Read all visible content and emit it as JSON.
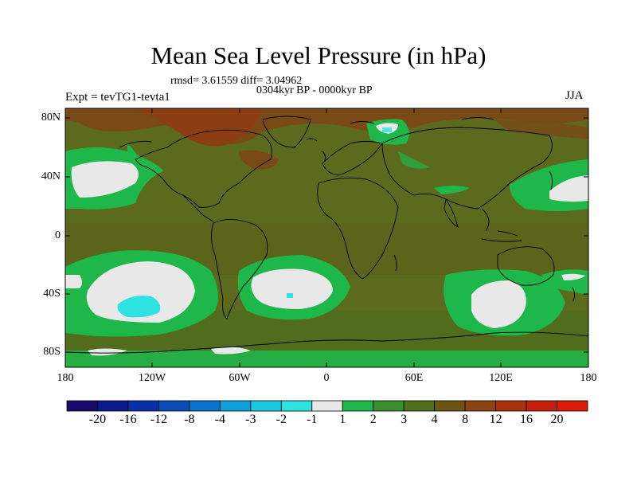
{
  "title": "Mean Sea Level Pressure (in hPa)",
  "stats": "rmsd= 3.61559  diff= 3.04962",
  "period": "0304kyr BP - 0000kyr BP",
  "experiment": "Expt = tevTG1-tevta1",
  "season": "JJA",
  "lat_labels": [
    "80N",
    "40N",
    "0",
    "40S",
    "80S"
  ],
  "lon_labels": [
    "180",
    "120W",
    "60W",
    "0",
    "60E",
    "120E",
    "180"
  ],
  "colorbar": {
    "labels": [
      "-20",
      "-16",
      "-12",
      "-8",
      "-4",
      "-3",
      "-2",
      "-1",
      "1",
      "2",
      "3",
      "4",
      "8",
      "12",
      "16",
      "20"
    ],
    "colors": [
      "#1a0a6b",
      "#0d1a8c",
      "#0a2ea8",
      "#0a4cb4",
      "#0a72c8",
      "#0ea0d8",
      "#1ec8e0",
      "#2ee2e2",
      "#e8e8e8",
      "#1eb84a",
      "#3a8e2e",
      "#4f6e1e",
      "#6c5416",
      "#8c4416",
      "#a83210",
      "#c41e0c",
      "#d81e0a"
    ]
  }
}
